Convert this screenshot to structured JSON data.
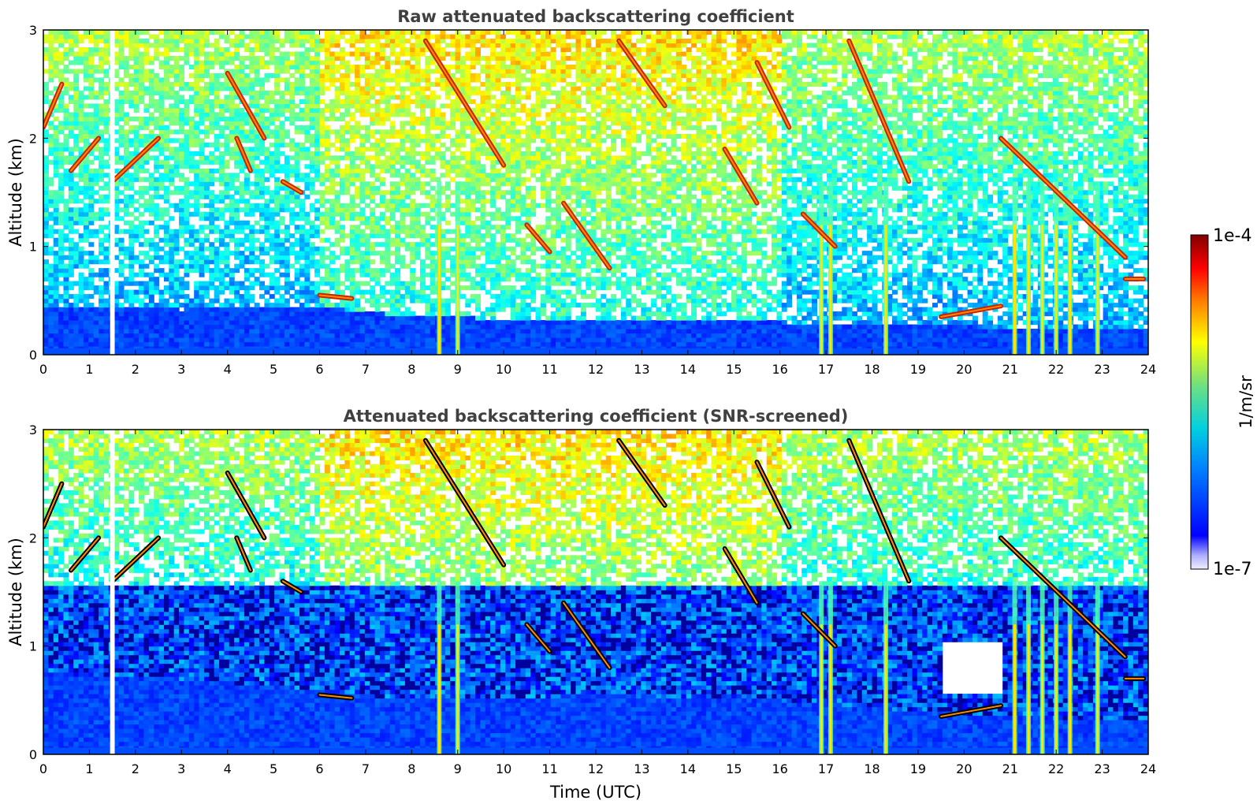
{
  "figure": {
    "xlabel": "Time (UTC)",
    "colorbar": {
      "label": "1/m/sr",
      "max_label": "1e-4",
      "min_label": "1e-7",
      "scale": "log",
      "colormap": "jet"
    },
    "colors": {
      "title": "#404040",
      "frame": "#000000",
      "background": "#ffffff",
      "bar_low": "#0000ff",
      "bar_mid": "#2ec4d6",
      "bar_high": "#ff2200",
      "bar_top": "#800000"
    }
  },
  "chart_data": [
    {
      "type": "heatmap",
      "title": "Raw attenuated backscattering coefficient",
      "xlabel": "",
      "ylabel": "Altitude (km)",
      "xlim": [
        0,
        24
      ],
      "ylim": [
        0,
        3
      ],
      "x_ticks": [
        "0",
        "1",
        "2",
        "3",
        "4",
        "5",
        "6",
        "7",
        "8",
        "9",
        "10",
        "11",
        "12",
        "13",
        "14",
        "15",
        "16",
        "17",
        "18",
        "19",
        "20",
        "21",
        "22",
        "23",
        "24"
      ],
      "y_ticks": [
        "0",
        "1",
        "2",
        "3"
      ],
      "grid": false,
      "colorscale": {
        "min": 1e-07,
        "max": 0.0001,
        "log": true,
        "colormap": "jet"
      },
      "features": {
        "boundary_layer_top_km": [
          [
            0,
            0.45
          ],
          [
            3,
            0.42
          ],
          [
            6,
            0.45
          ],
          [
            8,
            0.35
          ],
          [
            12,
            0.32
          ],
          [
            16,
            0.3
          ],
          [
            19,
            0.28
          ],
          [
            21,
            0.25
          ],
          [
            24,
            0.25
          ]
        ],
        "cloud_segments": [
          {
            "x": [
              0.0,
              0.4
            ],
            "y": [
              2.1,
              2.5
            ]
          },
          {
            "x": [
              0.6,
              1.2
            ],
            "y": [
              1.7,
              2.0
            ]
          },
          {
            "x": [
              1.5,
              2.5
            ],
            "y": [
              1.6,
              2.0
            ]
          },
          {
            "x": [
              4.0,
              4.8
            ],
            "y": [
              2.6,
              2.0
            ]
          },
          {
            "x": [
              4.2,
              4.5
            ],
            "y": [
              2.0,
              1.7
            ]
          },
          {
            "x": [
              5.2,
              5.6
            ],
            "y": [
              1.6,
              1.5
            ]
          },
          {
            "x": [
              6.0,
              6.7
            ],
            "y": [
              0.55,
              0.52
            ]
          },
          {
            "x": [
              8.3,
              10.0
            ],
            "y": [
              2.9,
              1.75
            ]
          },
          {
            "x": [
              10.5,
              11.0
            ],
            "y": [
              1.2,
              0.95
            ]
          },
          {
            "x": [
              11.3,
              12.3
            ],
            "y": [
              1.4,
              0.8
            ]
          },
          {
            "x": [
              12.5,
              13.5
            ],
            "y": [
              2.9,
              2.3
            ]
          },
          {
            "x": [
              15.5,
              16.2
            ],
            "y": [
              2.7,
              2.1
            ]
          },
          {
            "x": [
              14.8,
              15.5
            ],
            "y": [
              1.9,
              1.4
            ]
          },
          {
            "x": [
              16.5,
              17.2
            ],
            "y": [
              1.3,
              1.0
            ]
          },
          {
            "x": [
              17.5,
              18.8
            ],
            "y": [
              2.9,
              1.6
            ]
          },
          {
            "x": [
              19.5,
              20.8
            ],
            "y": [
              0.35,
              0.45
            ]
          },
          {
            "x": [
              20.8,
              23.5
            ],
            "y": [
              2.0,
              0.9
            ]
          },
          {
            "x": [
              23.5,
              23.9
            ],
            "y": [
              0.7,
              0.7
            ]
          }
        ],
        "precipitation_columns_hours": [
          8.6,
          9.0,
          16.9,
          17.1,
          18.3,
          21.1,
          21.4,
          21.7,
          22.0,
          22.3,
          22.9
        ],
        "data_gap_hours": [
          1.45,
          1.55
        ]
      }
    },
    {
      "type": "heatmap",
      "title": "Attenuated backscattering coefficient (SNR-screened)",
      "xlabel": "Time (UTC)",
      "ylabel": "Altitude (km)",
      "xlim": [
        0,
        24
      ],
      "ylim": [
        0,
        3
      ],
      "x_ticks": [
        "0",
        "1",
        "2",
        "3",
        "4",
        "5",
        "6",
        "7",
        "8",
        "9",
        "10",
        "11",
        "12",
        "13",
        "14",
        "15",
        "16",
        "17",
        "18",
        "19",
        "20",
        "21",
        "22",
        "23",
        "24"
      ],
      "y_ticks": [
        "0",
        "1",
        "2",
        "3"
      ],
      "grid": false,
      "colorscale": {
        "min": 1e-07,
        "max": 0.0001,
        "log": true,
        "colormap": "jet"
      },
      "features": {
        "boundary_layer_top_km": [
          [
            0,
            0.75
          ],
          [
            3,
            0.7
          ],
          [
            6,
            0.6
          ],
          [
            8,
            0.5
          ],
          [
            12,
            0.55
          ],
          [
            16,
            0.5
          ],
          [
            19,
            0.4
          ],
          [
            21,
            0.35
          ],
          [
            24,
            0.3
          ]
        ],
        "screened_blue_band_top_km": 1.55,
        "clear_gap_hours_km": [
          [
            19.5,
            20.8,
            0.55,
            1.05
          ]
        ],
        "data_gap_hours": [
          1.45,
          1.55
        ]
      }
    }
  ]
}
